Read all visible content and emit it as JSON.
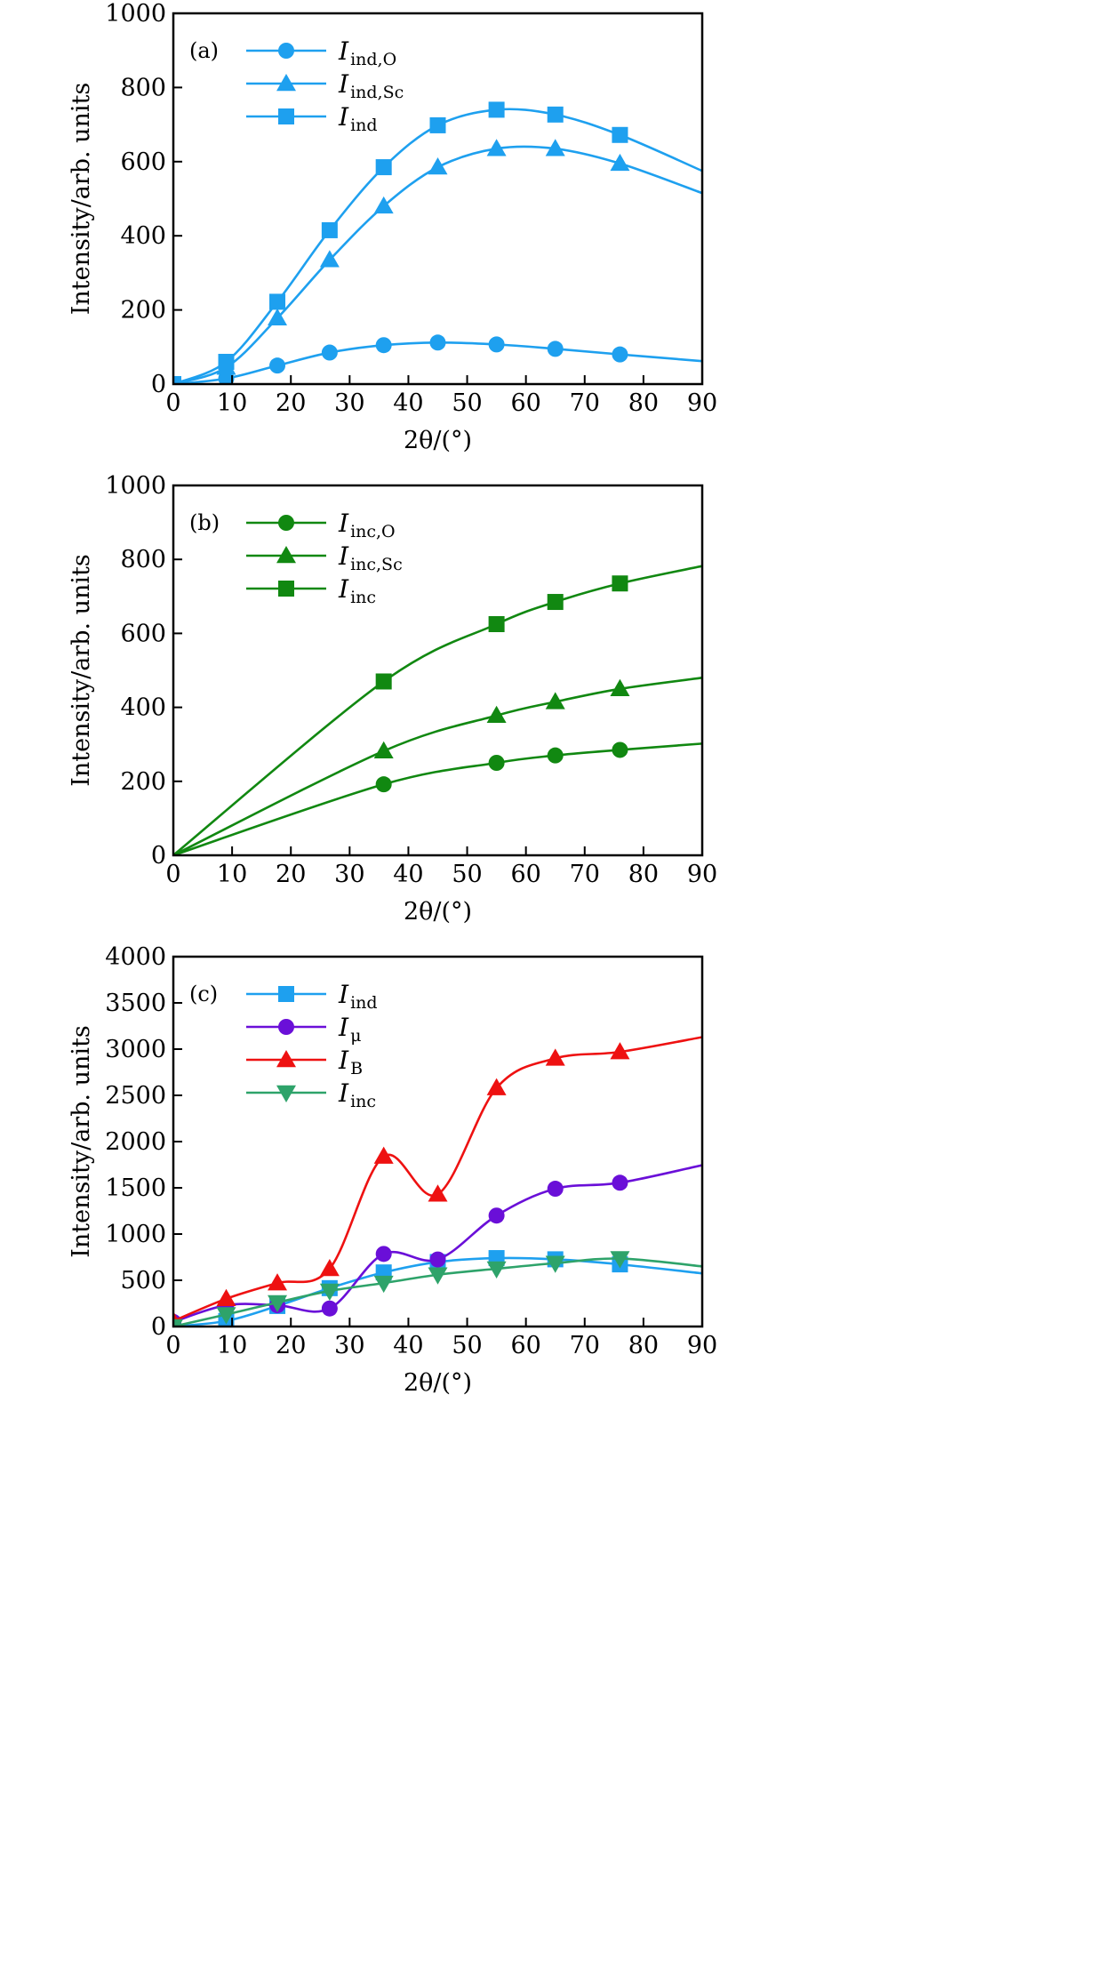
{
  "chart_data": [
    {
      "type": "line",
      "panel_label": "(a)",
      "xlabel": "2θ/(°)",
      "ylabel": "Intensity/arb. units",
      "xlim": [
        0,
        90
      ],
      "ylim": [
        0,
        1000
      ],
      "xticks": [
        0,
        10,
        20,
        30,
        40,
        50,
        60,
        70,
        80,
        90
      ],
      "yticks": [
        0,
        200,
        400,
        600,
        800,
        1000
      ],
      "grid": false,
      "legend_position": "top-left",
      "series": [
        {
          "name": "I",
          "sub": "ind,O",
          "color": "#1ea0ef",
          "marker": "circle",
          "x": [
            0,
            9,
            17.7,
            26.6,
            35.8,
            45,
            55,
            65,
            76
          ],
          "values": [
            0,
            15,
            50,
            85,
            105,
            112,
            107,
            95,
            80
          ],
          "curve_end": [
            90,
            62
          ]
        },
        {
          "name": "I",
          "sub": "ind,Sc",
          "color": "#1ea0ef",
          "marker": "triangle",
          "x": [
            0,
            9,
            17.7,
            26.6,
            35.8,
            45,
            55,
            65,
            76
          ],
          "values": [
            0,
            45,
            178,
            335,
            480,
            585,
            635,
            635,
            595
          ],
          "curve_end": [
            90,
            515
          ]
        },
        {
          "name": "I",
          "sub": "ind",
          "color": "#1ea0ef",
          "marker": "square",
          "x": [
            0,
            9,
            17.7,
            26.6,
            35.8,
            45,
            55,
            65,
            76
          ],
          "values": [
            0,
            60,
            222,
            415,
            585,
            698,
            740,
            727,
            672
          ],
          "curve_end": [
            90,
            575
          ]
        }
      ]
    },
    {
      "type": "line",
      "panel_label": "(b)",
      "xlabel": "2θ/(°)",
      "ylabel": "Intensity/arb. units",
      "xlim": [
        0,
        90
      ],
      "ylim": [
        0,
        1000
      ],
      "xticks": [
        0,
        10,
        20,
        30,
        40,
        50,
        60,
        70,
        80,
        90
      ],
      "yticks": [
        0,
        200,
        400,
        600,
        800,
        1000
      ],
      "grid": false,
      "legend_position": "top-left",
      "series": [
        {
          "name": "I",
          "sub": "inc,O",
          "color": "#118811",
          "marker": "circle",
          "x": [
            35.8,
            55,
            65,
            76
          ],
          "values": [
            192,
            250,
            270,
            285
          ],
          "curve_start": [
            0,
            0
          ],
          "curve_end": [
            90,
            302
          ]
        },
        {
          "name": "I",
          "sub": "inc,Sc",
          "color": "#118811",
          "marker": "triangle",
          "x": [
            35.8,
            55,
            65,
            76
          ],
          "values": [
            282,
            378,
            415,
            450
          ],
          "curve_start": [
            0,
            0
          ],
          "curve_end": [
            90,
            480
          ]
        },
        {
          "name": "I",
          "sub": "inc",
          "color": "#118811",
          "marker": "square",
          "x": [
            35.8,
            55,
            65,
            76
          ],
          "values": [
            470,
            625,
            685,
            735
          ],
          "curve_start": [
            0,
            0
          ],
          "curve_end": [
            90,
            782
          ]
        }
      ]
    },
    {
      "type": "line",
      "panel_label": "(c)",
      "xlabel": "2θ/(°)",
      "ylabel": "Intensity/arb. units",
      "xlim": [
        0,
        90
      ],
      "ylim": [
        0,
        4000
      ],
      "xticks": [
        0,
        10,
        20,
        30,
        40,
        50,
        60,
        70,
        80,
        90
      ],
      "yticks": [
        0,
        500,
        1000,
        1500,
        2000,
        2500,
        3000,
        3500,
        4000
      ],
      "grid": false,
      "legend_position": "top-left",
      "series": [
        {
          "name": "I",
          "sub": "ind",
          "color": "#1ea0ef",
          "marker": "square",
          "x": [
            0,
            9,
            17.7,
            26.6,
            35.8,
            45,
            55,
            65,
            76
          ],
          "values": [
            0,
            60,
            222,
            415,
            585,
            698,
            740,
            727,
            672
          ],
          "curve_end": [
            90,
            575
          ]
        },
        {
          "name": "I",
          "sub": "μ",
          "color": "#6a0fd8",
          "marker": "circle",
          "x": [
            0,
            9,
            17.7,
            26.6,
            35.8,
            45,
            55,
            65,
            76
          ],
          "values": [
            50,
            230,
            230,
            195,
            785,
            725,
            1200,
            1490,
            1555
          ],
          "curve_end": [
            90,
            1745
          ]
        },
        {
          "name": "I",
          "sub": "B",
          "color": "#ee1111",
          "marker": "triangle",
          "x": [
            0,
            9,
            17.7,
            26.6,
            35.8,
            45,
            55,
            65,
            76
          ],
          "values": [
            60,
            300,
            470,
            625,
            1840,
            1430,
            2580,
            2900,
            2970
          ],
          "curve_end": [
            90,
            3130
          ]
        },
        {
          "name": "I",
          "sub": "inc",
          "color": "#2ea36a",
          "marker": "triangle-down",
          "x": [
            0,
            9,
            17.7,
            26.6,
            35.8,
            45,
            55,
            65,
            76
          ],
          "values": [
            0,
            130,
            260,
            385,
            470,
            560,
            625,
            685,
            735
          ],
          "curve_end": [
            90,
            650
          ]
        }
      ]
    }
  ]
}
